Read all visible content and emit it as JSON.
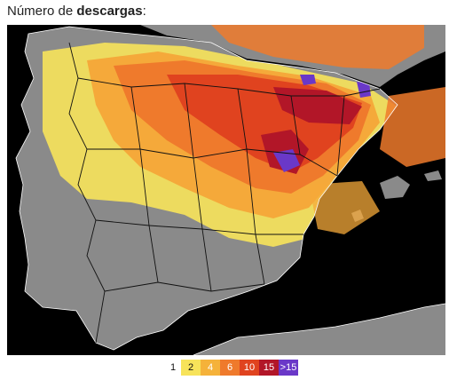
{
  "title": {
    "prefix": "Número de ",
    "bold": "descargas",
    "suffix": ":"
  },
  "colors": {
    "sea": "#000000",
    "land": "#8a8a8a",
    "border": "#111111",
    "coast": "#ffffff"
  },
  "legend": [
    {
      "label": "1",
      "color": "#ffffff"
    },
    {
      "label": "2",
      "color": "#f7e35a"
    },
    {
      "label": "4",
      "color": "#f5b23a"
    },
    {
      "label": "6",
      "color": "#ef7a2c"
    },
    {
      "label": "10",
      "color": "#e0431f"
    },
    {
      "label": "15",
      "color": "#b21628"
    },
    {
      "label": ">15",
      "color": "#6a38c8"
    }
  ]
}
